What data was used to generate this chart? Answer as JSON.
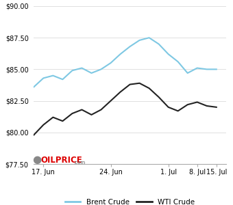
{
  "brent": [
    [
      0,
      83.6
    ],
    [
      1,
      84.3
    ],
    [
      2,
      84.5
    ],
    [
      3,
      84.2
    ],
    [
      4,
      84.9
    ],
    [
      5,
      85.1
    ],
    [
      6,
      84.7
    ],
    [
      7,
      85.0
    ],
    [
      8,
      85.5
    ],
    [
      9,
      86.2
    ],
    [
      10,
      86.8
    ],
    [
      11,
      87.3
    ],
    [
      12,
      87.5
    ],
    [
      13,
      87.0
    ],
    [
      14,
      86.2
    ],
    [
      15,
      85.6
    ],
    [
      16,
      84.7
    ],
    [
      17,
      85.1
    ],
    [
      18,
      85.0
    ],
    [
      19,
      85.0
    ]
  ],
  "wti": [
    [
      0,
      79.8
    ],
    [
      1,
      80.6
    ],
    [
      2,
      81.2
    ],
    [
      3,
      80.9
    ],
    [
      4,
      81.5
    ],
    [
      5,
      81.8
    ],
    [
      6,
      81.4
    ],
    [
      7,
      81.8
    ],
    [
      8,
      82.5
    ],
    [
      9,
      83.2
    ],
    [
      10,
      83.8
    ],
    [
      11,
      83.9
    ],
    [
      12,
      83.5
    ],
    [
      13,
      82.8
    ],
    [
      14,
      82.0
    ],
    [
      15,
      81.7
    ],
    [
      16,
      82.2
    ],
    [
      17,
      82.4
    ],
    [
      18,
      82.1
    ],
    [
      19,
      82.0
    ]
  ],
  "brent_color": "#7EC8E3",
  "wti_color": "#222222",
  "ylim": [
    77.5,
    90.0
  ],
  "yticks": [
    77.5,
    80.0,
    82.5,
    85.0,
    87.5,
    90.0
  ],
  "xtick_positions": [
    1,
    8,
    14,
    17,
    19
  ],
  "xtick_labels": [
    "17. Jun",
    "24. Jun",
    "1. Jul",
    "8. Jul",
    "15. Jul"
  ],
  "grid_color": "#e0e0e0",
  "bg_color": "#ffffff",
  "legend_brent": "Brent Crude",
  "legend_wti": "WTI Crude",
  "line_width": 1.5
}
